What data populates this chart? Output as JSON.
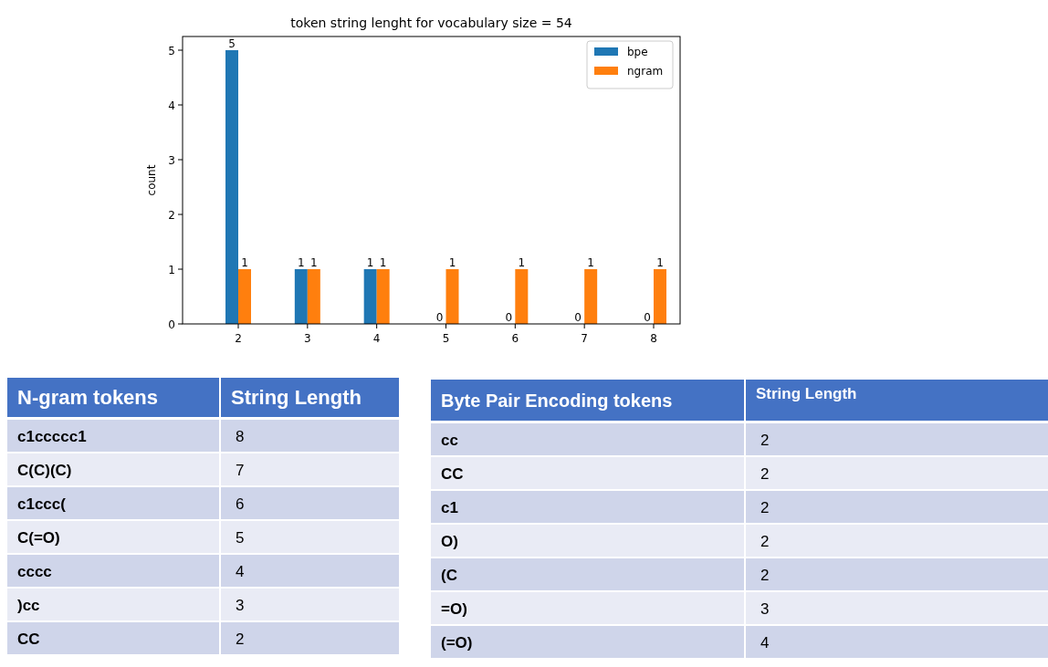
{
  "chart_data": [
    {
      "type": "bar",
      "title": "token string lenght for vocabulary size = 54",
      "ylabel": "count",
      "categories": [
        "2",
        "3",
        "4",
        "5",
        "6",
        "7",
        "8"
      ],
      "series": [
        {
          "name": "bpe",
          "color": "#1f77b4",
          "values": [
            5,
            1,
            1,
            0,
            0,
            0,
            0
          ]
        },
        {
          "name": "ngram",
          "color": "#ff7f0e",
          "values": [
            1,
            1,
            1,
            1,
            1,
            1,
            1
          ]
        }
      ],
      "ylim": [
        0,
        5.25
      ],
      "yticks": [
        0,
        1,
        2,
        3,
        4,
        5
      ],
      "legend": "top right",
      "data_labels": true
    },
    {
      "type": "other",
      "xlabel": "N-gram tokens",
      "ylabel": "String Length",
      "categories": [
        "c1ccccc1",
        "C(C)(C)",
        "c1ccc(",
        "C(=O)",
        "cccc",
        ")cc",
        "CC"
      ],
      "values": [
        8,
        7,
        6,
        5,
        4,
        3,
        2
      ],
      "data_labels": true
    },
    {
      "type": "other",
      "xlabel": "Byte Pair Encoding tokens",
      "ylabel": "String Length",
      "categories": [
        "cc",
        "CC",
        "c1",
        "O)",
        "(C",
        "=O)",
        "(=O)"
      ],
      "values": [
        2,
        2,
        2,
        2,
        2,
        3,
        4
      ],
      "data_labels": true
    }
  ]
}
